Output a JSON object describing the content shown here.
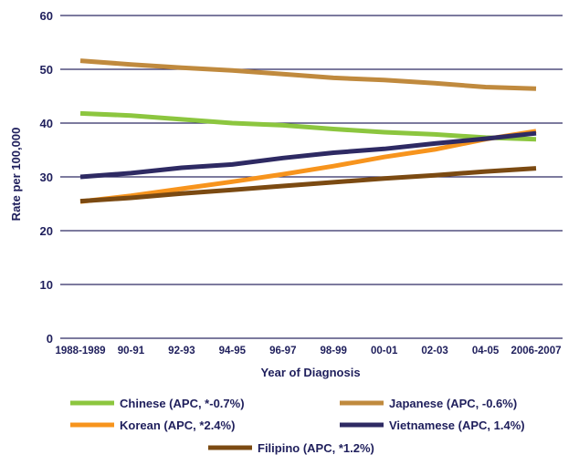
{
  "chart_data": {
    "type": "line",
    "title": "",
    "xlabel": "Year of Diagnosis",
    "ylabel": "Rate per 100,000",
    "ylim": [
      0,
      60
    ],
    "yticks": [
      0,
      10,
      20,
      30,
      40,
      50,
      60
    ],
    "grid": true,
    "legend_position": "bottom",
    "categories": [
      "1988-1989",
      "90-91",
      "92-93",
      "94-95",
      "96-97",
      "98-99",
      "00-01",
      "02-03",
      "04-05",
      "2006-2007"
    ],
    "series": [
      {
        "name": "Chinese (APC, *-0.7%)",
        "color": "#8cc63f",
        "values": [
          41.8,
          41.4,
          40.7,
          40.0,
          39.6,
          38.9,
          38.3,
          37.9,
          37.3,
          37.0
        ]
      },
      {
        "name": "Japanese (APC, -0.6%)",
        "color": "#c08a3e",
        "values": [
          51.6,
          50.9,
          50.3,
          49.8,
          49.1,
          48.4,
          48.0,
          47.4,
          46.7,
          46.4
        ]
      },
      {
        "name": "Korean (APC, *2.4%)",
        "color": "#f7941d",
        "values": [
          25.4,
          26.5,
          27.8,
          29.1,
          30.5,
          32.0,
          33.7,
          35.1,
          37.0,
          38.5
        ]
      },
      {
        "name": "Vietnamese (APC, 1.4%)",
        "color": "#2e2a63",
        "values": [
          30.0,
          30.7,
          31.7,
          32.3,
          33.5,
          34.5,
          35.2,
          36.2,
          37.1,
          38.1
        ]
      },
      {
        "name": "Filipino (APC, *1.2%)",
        "color": "#7b4a12",
        "values": [
          25.5,
          26.1,
          26.9,
          27.6,
          28.3,
          29.0,
          29.7,
          30.3,
          31.0,
          31.6
        ]
      }
    ]
  }
}
